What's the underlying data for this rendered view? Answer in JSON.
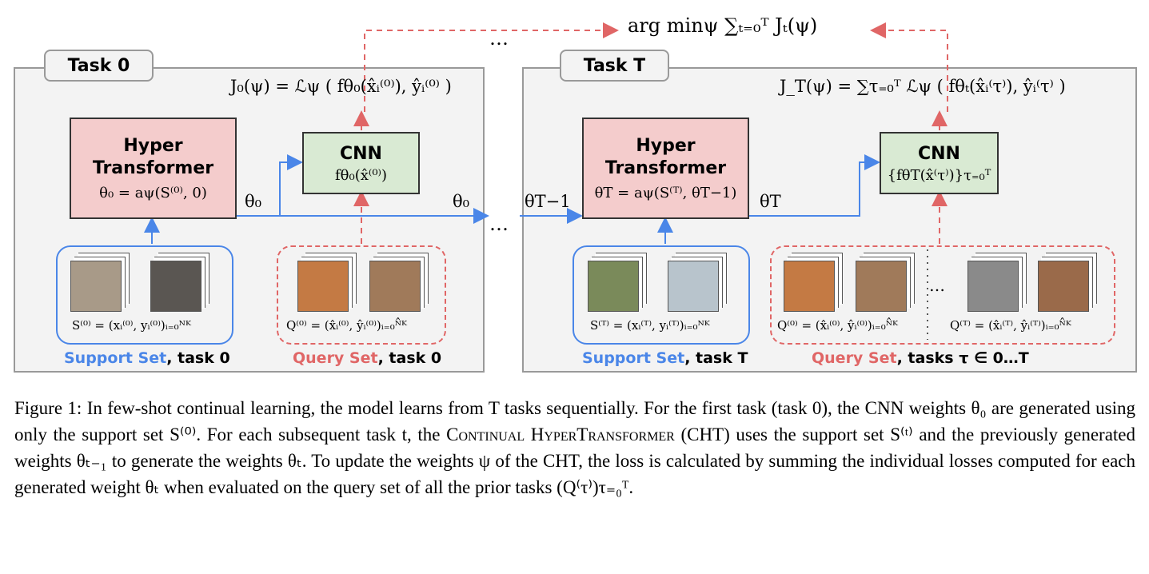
{
  "figure": {
    "objective": "arg minψ ∑ₜ₌₀ᵀ Jₜ(ψ)",
    "top_ellipsis": "…",
    "mid_ellipsis": "…",
    "left": {
      "tab": "Task 0",
      "loss": "J₀(ψ) = ℒψ ( fθ₀(x̂ᵢ⁽⁰⁾), ŷᵢ⁽⁰⁾ )",
      "hyper": {
        "title": "Hyper Transformer",
        "formula": "θ₀ = aψ(S⁽⁰⁾, 0)"
      },
      "cnn": {
        "title": "CNN",
        "formula": "fθ₀(x̂⁽⁰⁾)"
      },
      "theta_up": "θ₀",
      "theta_out": "θ₀",
      "support": {
        "formula": "S⁽⁰⁾ = (xᵢ⁽⁰⁾, yᵢ⁽⁰⁾)ᵢ₌₀ᴺᴷ",
        "name": "Support Set",
        "task": ", task 0"
      },
      "query": {
        "formula": "Q⁽⁰⁾ = (x̂ᵢ⁽⁰⁾, ŷᵢ⁽⁰⁾)ᵢ₌₀ᴺ̂ᴷ",
        "name": "Query Set",
        "task": ", task 0"
      }
    },
    "right": {
      "tab": "Task T",
      "loss": "J_T(ψ) = ∑τ₌₀ᵀ ℒψ ( fθₜ(x̂ᵢ⁽τ⁾), ŷᵢ⁽τ⁾ )",
      "theta_in": "θT−1",
      "hyper": {
        "title": "Hyper Transformer",
        "formula": "θT = aψ(S⁽ᵀ⁾, θT−1)"
      },
      "cnn": {
        "title": "CNN",
        "formula": "{fθT(x̂⁽τ⁾)}τ₌₀ᵀ"
      },
      "theta_out": "θT",
      "support": {
        "formula": "S⁽ᵀ⁾ = (xᵢ⁽ᵀ⁾, yᵢ⁽ᵀ⁾)ᵢ₌₀ᴺᴷ",
        "name": "Support Set",
        "task": ", task T"
      },
      "query": {
        "formula_first": "Q⁽⁰⁾ = (x̂ᵢ⁽⁰⁾, ŷᵢ⁽⁰⁾)ᵢ₌₀ᴺ̂ᴷ",
        "ellipsis": "…",
        "formula_last": "Q⁽ᵀ⁾ = (x̂ᵢ⁽ᵀ⁾, ŷᵢ⁽ᵀ⁾)ᵢ₌₀ᴺ̂ᴷ",
        "name": "Query Set",
        "task": ", tasks τ ∈ 0…T"
      }
    },
    "caption": {
      "before": "Figure 1: In few-shot continual learning, the model learns from T tasks sequentially. For the first task (task 0), the CNN weights θ₀ are generated using only the support set S⁽⁰⁾. For each subsequent task t, the ",
      "smallcaps": "Continual HyperTransformer",
      "after": " (CHT) uses the support set S⁽ᵗ⁾ and the previously generated weights θₜ₋₁ to generate the weights θₜ. To update the weights ψ of the CHT, the loss is calculated by summing the individual losses computed for each generated weight θₜ when evaluated on the query set of all the prior tasks (Q⁽τ⁾)τ₌₀ᵀ."
    }
  }
}
